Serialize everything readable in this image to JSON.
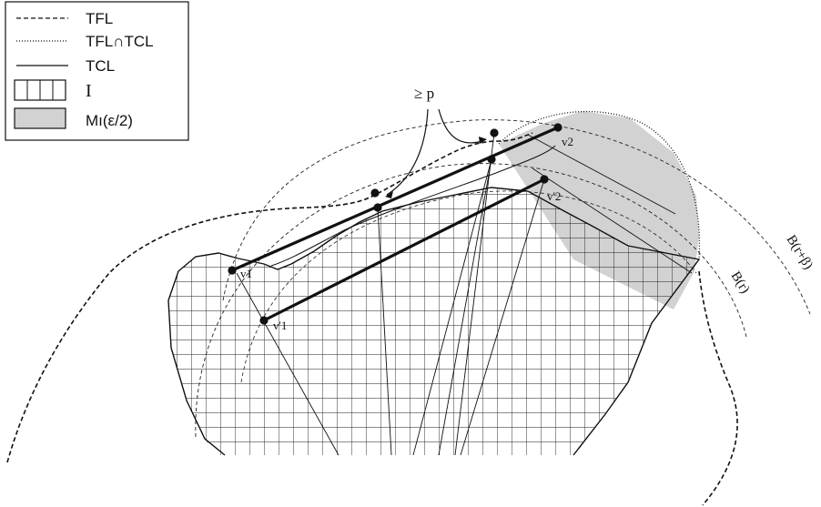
{
  "legend": {
    "tfl": "TFL",
    "intersection": "TFL∩TCL",
    "tcl": "TCL",
    "i": "I",
    "m": "Mı(ε/2)"
  },
  "labels": {
    "geq_p": "≥ p",
    "v1": "v1",
    "v2": "v2",
    "v1p": "v'1",
    "v2p": "v'2",
    "ball_r": "B(r)",
    "ball_rb": "B(r+β)"
  },
  "colors": {
    "shade": "#d2d2d2",
    "ink": "#111111"
  }
}
